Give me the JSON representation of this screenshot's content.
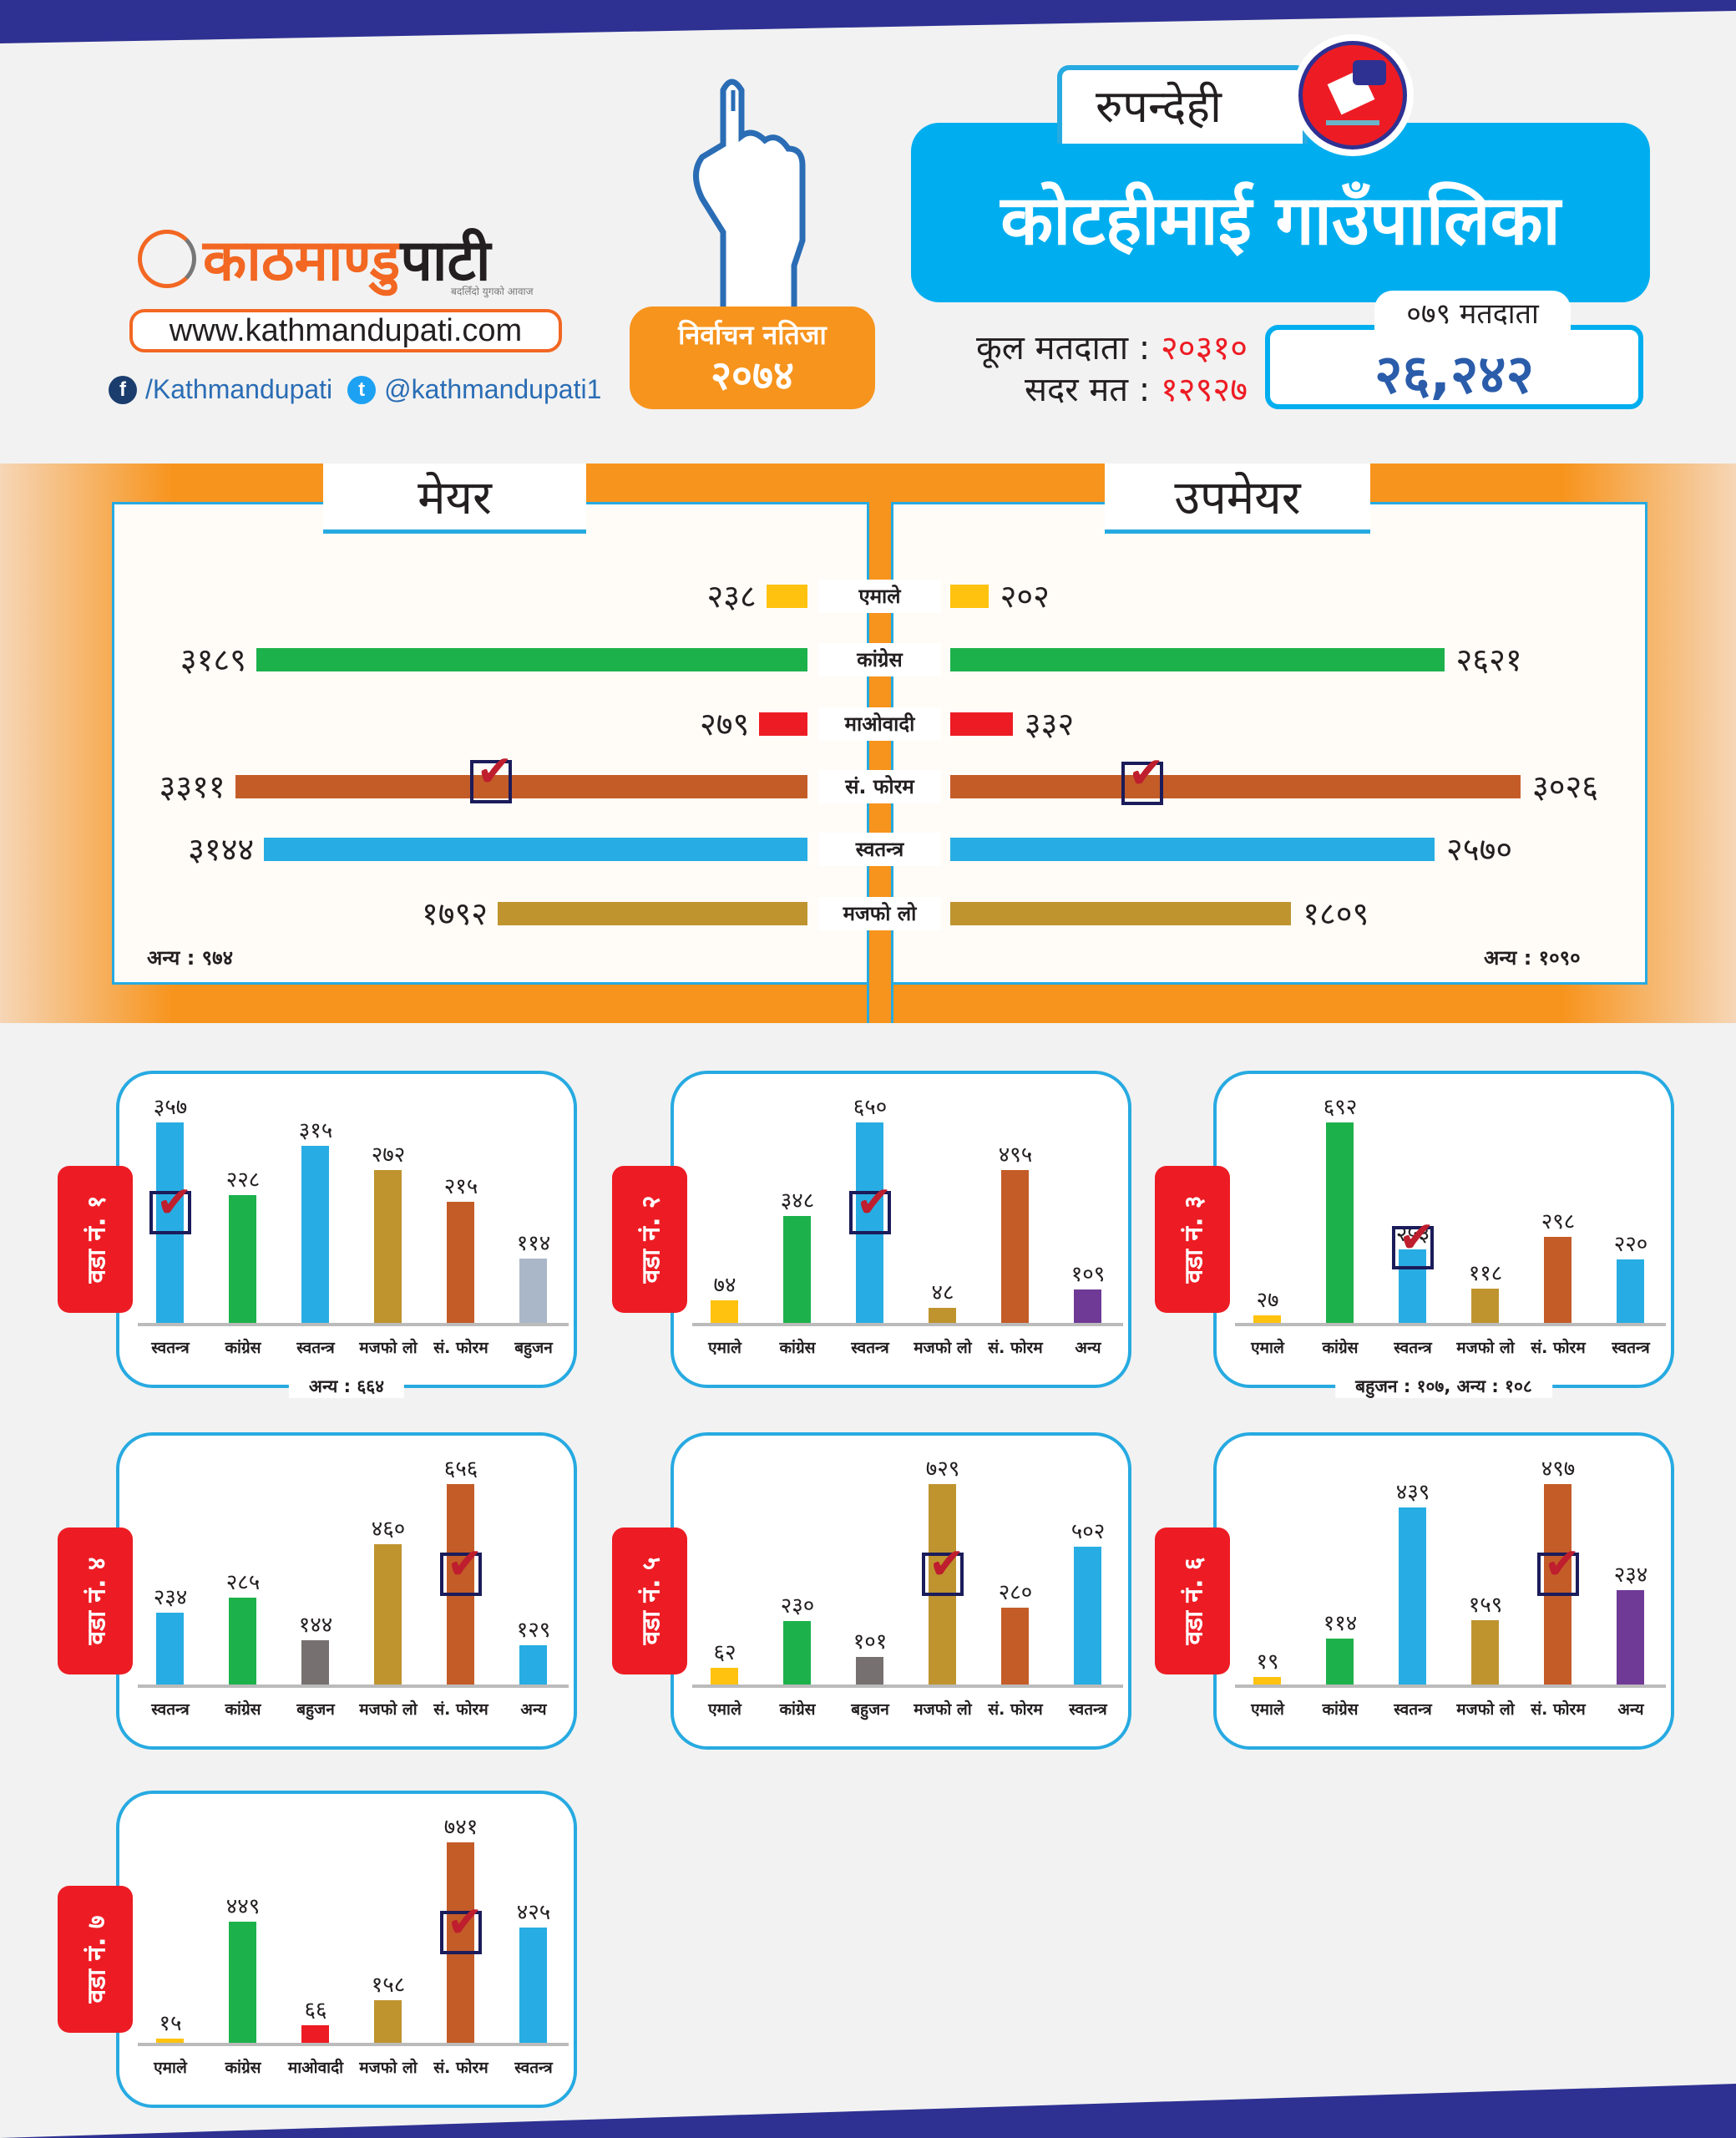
{
  "header": {
    "logo_orange": "काठमाण्डु",
    "logo_dark": "पाटी",
    "logo_tagline": "बदलिँदो युगको आवाज",
    "website": "www.kathmandupati.com",
    "facebook": "/Kathmandupati",
    "twitter": "@kathmandupati1",
    "badge_line1": "निर्वाचन नतिजा",
    "badge_line2": "२०७४",
    "district": "रुपन्देही",
    "municipality": "कोटहीमाई गाउँपालिका",
    "total_voters_label": "कूल मतदाता",
    "total_voters_value": "२०३१०",
    "valid_votes_label": "सदर मत",
    "valid_votes_value": "१२९२७",
    "separator": ":",
    "voters_079_label": "०७९ मतदाता",
    "voters_079_value": "२६,२४२"
  },
  "colors": {
    "emale": "#ffc20e",
    "congress": "#1db14b",
    "maoist": "#ed1c24",
    "forum": "#c45c28",
    "swatantra": "#27ade3",
    "majfo": "#bf942f",
    "bahujan1": "#aab7c8",
    "bahujan": "#767070",
    "anya": "#6f3996",
    "accent": "#00aeef",
    "orange": "#f7941d"
  },
  "chart_data": [
    {
      "type": "bar",
      "title": "मेयर",
      "orientation": "horizontal-left",
      "categories": [
        "एमाले",
        "कांग्रेस",
        "माओवादी",
        "सं. फोरम",
        "स्वतन्त्र",
        "मजफो लो"
      ],
      "values": [
        238,
        3189,
        279,
        3311,
        3144,
        1792
      ],
      "value_labels": [
        "२३८",
        "३१८९",
        "२७९",
        "३३११",
        "३१४४",
        "१७९२"
      ],
      "color_keys": [
        "emale",
        "congress",
        "maoist",
        "forum",
        "swatantra",
        "majfo"
      ],
      "winner": 3,
      "other_label": "अन्य : ९७४"
    },
    {
      "type": "bar",
      "title": "उपमेयर",
      "orientation": "horizontal-right",
      "categories": [
        "एमाले",
        "कांग्रेस",
        "माओवादी",
        "सं. फोरम",
        "स्वतन्त्र",
        "मजफो लो"
      ],
      "values": [
        202,
        2621,
        332,
        3026,
        2570,
        1809
      ],
      "value_labels": [
        "२०२",
        "२६२१",
        "३३२",
        "३०२६",
        "२५७०",
        "१८०९"
      ],
      "color_keys": [
        "emale",
        "congress",
        "maoist",
        "forum",
        "swatantra",
        "majfo"
      ],
      "winner": 3,
      "other_label": "अन्य : १०९०"
    },
    {
      "type": "bar",
      "title": "वडा नं. १",
      "categories": [
        "स्वतन्त्र",
        "कांग्रेस",
        "स्वतन्त्र",
        "मजफो लो",
        "सं. फोरम",
        "बहुजन"
      ],
      "values": [
        357,
        228,
        315,
        272,
        215,
        114
      ],
      "value_labels": [
        "३५७",
        "२२८",
        "३१५",
        "२७२",
        "२१५",
        "११४"
      ],
      "color_keys": [
        "swatantra",
        "congress",
        "swatantra",
        "majfo",
        "forum",
        "bahujan1"
      ],
      "winner": 0,
      "note": "अन्य : ६६४"
    },
    {
      "type": "bar",
      "title": "वडा नं. २",
      "categories": [
        "एमाले",
        "कांग्रेस",
        "स्वतन्त्र",
        "मजफो लो",
        "सं. फोरम",
        "अन्य"
      ],
      "values": [
        74,
        348,
        650,
        48,
        495,
        109
      ],
      "value_labels": [
        "७४",
        "३४८",
        "६५०",
        "४८",
        "४९५",
        "१०९"
      ],
      "color_keys": [
        "emale",
        "congress",
        "swatantra",
        "majfo",
        "forum",
        "anya"
      ],
      "winner": 2,
      "note": ""
    },
    {
      "type": "bar",
      "title": "वडा नं. ३",
      "categories": [
        "एमाले",
        "कांग्रेस",
        "स्वतन्त्र",
        "मजफो लो",
        "सं. फोरम",
        "स्वतन्त्र"
      ],
      "values": [
        27,
        692,
        253,
        118,
        298,
        220
      ],
      "value_labels": [
        "२७",
        "६९२",
        "२५३",
        "११८",
        "२९८",
        "२२०"
      ],
      "color_keys": [
        "emale",
        "congress",
        "swatantra",
        "majfo",
        "forum",
        "swatantra"
      ],
      "winner": 2,
      "note": "बहुजन : १०७, अन्य : १०८"
    },
    {
      "type": "bar",
      "title": "वडा नं. ४",
      "categories": [
        "स्वतन्त्र",
        "कांग्रेस",
        "बहुजन",
        "मजफो लो",
        "सं. फोरम",
        "अन्य"
      ],
      "values": [
        234,
        285,
        144,
        460,
        656,
        129
      ],
      "value_labels": [
        "२३४",
        "२८५",
        "१४४",
        "४६०",
        "६५६",
        "१२९"
      ],
      "color_keys": [
        "swatantra",
        "congress",
        "bahujan",
        "majfo",
        "forum",
        "swatantra"
      ],
      "winner": 4,
      "note": ""
    },
    {
      "type": "bar",
      "title": "वडा नं. ५",
      "categories": [
        "एमाले",
        "कांग्रेस",
        "बहुजन",
        "मजफो लो",
        "सं. फोरम",
        "स्वतन्त्र"
      ],
      "values": [
        62,
        230,
        101,
        729,
        280,
        502
      ],
      "value_labels": [
        "६२",
        "२३०",
        "१०१",
        "७२९",
        "२८०",
        "५०२"
      ],
      "color_keys": [
        "emale",
        "congress",
        "bahujan",
        "majfo",
        "forum",
        "swatantra"
      ],
      "winner": 3,
      "note": ""
    },
    {
      "type": "bar",
      "title": "वडा नं. ६",
      "categories": [
        "एमाले",
        "कांग्रेस",
        "स्वतन्त्र",
        "मजफो लो",
        "सं. फोरम",
        "अन्य"
      ],
      "values": [
        19,
        114,
        439,
        159,
        497,
        234
      ],
      "value_labels": [
        "१९",
        "११४",
        "४३९",
        "१५९",
        "४९७",
        "२३४"
      ],
      "color_keys": [
        "emale",
        "congress",
        "swatantra",
        "majfo",
        "forum",
        "anya"
      ],
      "winner": 4,
      "note": ""
    },
    {
      "type": "bar",
      "title": "वडा नं. ७",
      "categories": [
        "एमाले",
        "कांग्रेस",
        "माओवादी",
        "मजफो लो",
        "सं. फोरम",
        "स्वतन्त्र"
      ],
      "values": [
        15,
        449,
        66,
        158,
        741,
        425
      ],
      "value_labels": [
        "१५",
        "४४९",
        "६६",
        "१५८",
        "७४१",
        "४२५"
      ],
      "color_keys": [
        "emale",
        "congress",
        "maoist",
        "majfo",
        "forum",
        "swatantra"
      ],
      "winner": 4,
      "note": ""
    }
  ]
}
